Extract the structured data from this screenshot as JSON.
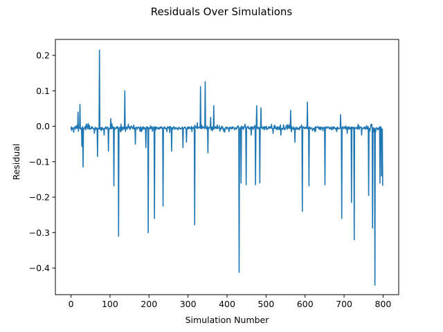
{
  "chart_data": {
    "type": "line",
    "title": "Residuals Over Simulations",
    "xlabel": "Simulation Number",
    "ylabel": "Residual",
    "xlim": [
      -40,
      840
    ],
    "ylim": [
      -0.475,
      0.245
    ],
    "xticks": [
      0,
      100,
      200,
      300,
      400,
      500,
      600,
      700,
      800
    ],
    "yticks": [
      -0.4,
      -0.3,
      -0.2,
      -0.1,
      0.0,
      0.1,
      0.2
    ],
    "xtick_labels": [
      "0",
      "100",
      "200",
      "300",
      "400",
      "500",
      "600",
      "700",
      "800"
    ],
    "ytick_labels": [
      "−0.4",
      "−0.3",
      "−0.2",
      "−0.1",
      "0.0",
      "0.1",
      "0.2"
    ],
    "grid": false,
    "legend": "none",
    "baseline": -0.005,
    "spikes": [
      [
        18,
        0.04
      ],
      [
        23,
        0.062
      ],
      [
        28,
        -0.057
      ],
      [
        31,
        -0.115
      ],
      [
        38,
        -0.01
      ],
      [
        44,
        0.008
      ],
      [
        60,
        -0.02
      ],
      [
        68,
        -0.085
      ],
      [
        73,
        0.215
      ],
      [
        85,
        -0.025
      ],
      [
        96,
        -0.07
      ],
      [
        102,
        0.022
      ],
      [
        110,
        -0.168
      ],
      [
        122,
        -0.31
      ],
      [
        138,
        0.1
      ],
      [
        165,
        -0.05
      ],
      [
        180,
        -0.015
      ],
      [
        192,
        -0.06
      ],
      [
        198,
        -0.3
      ],
      [
        214,
        -0.26
      ],
      [
        236,
        -0.225
      ],
      [
        246,
        -0.015
      ],
      [
        258,
        -0.07
      ],
      [
        274,
        -0.01
      ],
      [
        287,
        -0.06
      ],
      [
        296,
        -0.045
      ],
      [
        310,
        -0.015
      ],
      [
        317,
        -0.278
      ],
      [
        324,
        0.01
      ],
      [
        332,
        0.112
      ],
      [
        344,
        0.126
      ],
      [
        351,
        -0.075
      ],
      [
        358,
        0.025
      ],
      [
        366,
        0.058
      ],
      [
        378,
        -0.005
      ],
      [
        390,
        -0.01
      ],
      [
        405,
        -0.015
      ],
      [
        419,
        -0.01
      ],
      [
        431,
        -0.412
      ],
      [
        436,
        -0.16
      ],
      [
        449,
        -0.165
      ],
      [
        462,
        -0.025
      ],
      [
        473,
        -0.165
      ],
      [
        476,
        0.058
      ],
      [
        484,
        -0.16
      ],
      [
        487,
        0.052
      ],
      [
        502,
        -0.01
      ],
      [
        518,
        -0.02
      ],
      [
        538,
        -0.025
      ],
      [
        548,
        -0.01
      ],
      [
        563,
        0.045
      ],
      [
        574,
        -0.045
      ],
      [
        585,
        -0.01
      ],
      [
        593,
        -0.24
      ],
      [
        606,
        0.068
      ],
      [
        610,
        -0.168
      ],
      [
        625,
        -0.015
      ],
      [
        640,
        -0.01
      ],
      [
        651,
        -0.165
      ],
      [
        668,
        -0.01
      ],
      [
        680,
        -0.005
      ],
      [
        691,
        0.033
      ],
      [
        694,
        -0.26
      ],
      [
        708,
        -0.02
      ],
      [
        719,
        -0.215
      ],
      [
        726,
        -0.32
      ],
      [
        745,
        -0.025
      ],
      [
        763,
        -0.195
      ],
      [
        773,
        -0.287
      ],
      [
        779,
        -0.448
      ],
      [
        786,
        -0.01
      ],
      [
        792,
        -0.16
      ],
      [
        796,
        -0.14
      ],
      [
        799,
        -0.168
      ]
    ],
    "series": [
      {
        "color": "#1f77b4"
      }
    ]
  }
}
